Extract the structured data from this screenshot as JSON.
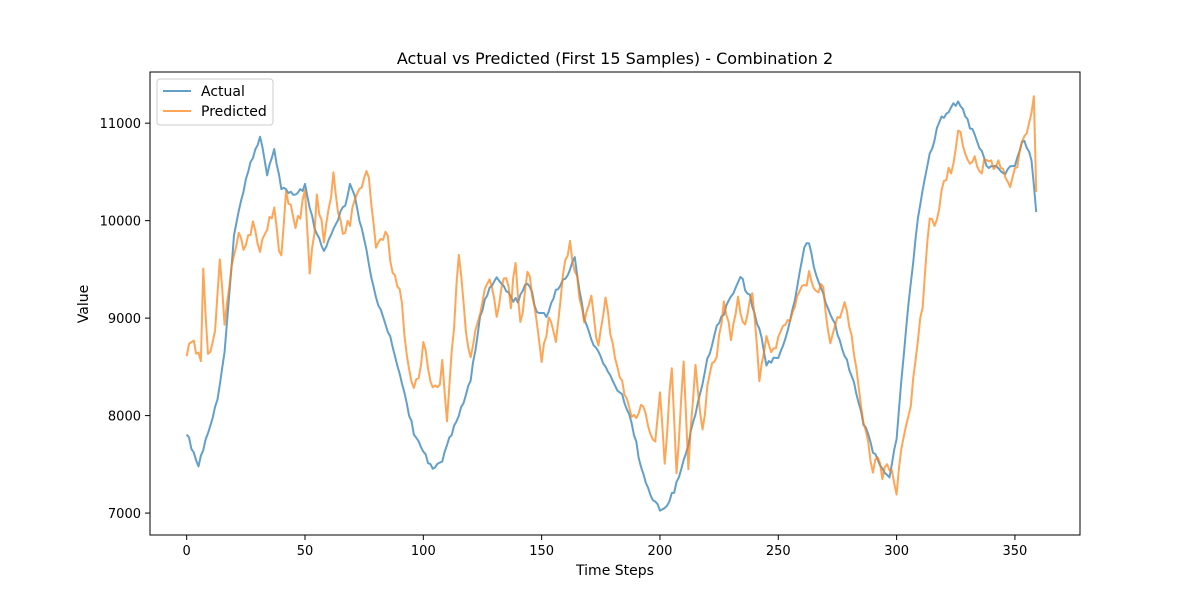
{
  "chart_data": {
    "type": "line",
    "title": "Actual vs Predicted (First 15 Samples) - Combination 2",
    "xlabel": "Time Steps",
    "ylabel": "Value",
    "xlim": [
      -15.5,
      377.5
    ],
    "ylim": [
      6775,
      11525
    ],
    "x_ticks": [
      0,
      50,
      100,
      150,
      200,
      250,
      300,
      350
    ],
    "y_ticks": [
      7000,
      8000,
      9000,
      10000,
      11000
    ],
    "grid": false,
    "legend": {
      "placement": "upper-left"
    },
    "series": [
      {
        "name": "Actual",
        "color": "#1f77b4",
        "anchors": [
          [
            0,
            7850
          ],
          [
            5,
            7480
          ],
          [
            8,
            7720
          ],
          [
            12,
            8050
          ],
          [
            16,
            8650
          ],
          [
            20,
            9850
          ],
          [
            25,
            10400
          ],
          [
            28,
            10650
          ],
          [
            31,
            10900
          ],
          [
            34,
            10500
          ],
          [
            37,
            10700
          ],
          [
            40,
            10300
          ],
          [
            45,
            10300
          ],
          [
            50,
            10350
          ],
          [
            54,
            9900
          ],
          [
            58,
            9700
          ],
          [
            63,
            10000
          ],
          [
            67,
            10150
          ],
          [
            69,
            10350
          ],
          [
            72,
            10150
          ],
          [
            76,
            9700
          ],
          [
            80,
            9200
          ],
          [
            84,
            8900
          ],
          [
            88,
            8650
          ],
          [
            93,
            8150
          ],
          [
            96,
            7800
          ],
          [
            100,
            7600
          ],
          [
            104,
            7480
          ],
          [
            108,
            7550
          ],
          [
            112,
            7800
          ],
          [
            116,
            8050
          ],
          [
            120,
            8400
          ],
          [
            124,
            9000
          ],
          [
            128,
            9300
          ],
          [
            132,
            9400
          ],
          [
            135,
            9300
          ],
          [
            140,
            9150
          ],
          [
            144,
            9350
          ],
          [
            148,
            9100
          ],
          [
            152,
            9050
          ],
          [
            156,
            9250
          ],
          [
            160,
            9400
          ],
          [
            164,
            9650
          ],
          [
            168,
            9000
          ],
          [
            172,
            8700
          ],
          [
            176,
            8550
          ],
          [
            180,
            8400
          ],
          [
            184,
            8200
          ],
          [
            188,
            7900
          ],
          [
            192,
            7500
          ],
          [
            196,
            7200
          ],
          [
            200,
            7000
          ],
          [
            204,
            7100
          ],
          [
            208,
            7400
          ],
          [
            212,
            7700
          ],
          [
            216,
            8100
          ],
          [
            220,
            8550
          ],
          [
            224,
            8950
          ],
          [
            230,
            9200
          ],
          [
            234,
            9400
          ],
          [
            238,
            9250
          ],
          [
            242,
            8900
          ],
          [
            245,
            8500
          ],
          [
            250,
            8600
          ],
          [
            254,
            8900
          ],
          [
            258,
            9300
          ],
          [
            261,
            9700
          ],
          [
            263,
            9750
          ],
          [
            266,
            9450
          ],
          [
            270,
            9200
          ],
          [
            274,
            8900
          ],
          [
            278,
            8600
          ],
          [
            282,
            8350
          ],
          [
            286,
            7950
          ],
          [
            290,
            7600
          ],
          [
            294,
            7450
          ],
          [
            297,
            7400
          ],
          [
            300,
            7800
          ],
          [
            303,
            8600
          ],
          [
            306,
            9350
          ],
          [
            310,
            10200
          ],
          [
            314,
            10700
          ],
          [
            318,
            11000
          ],
          [
            322,
            11100
          ],
          [
            326,
            11250
          ],
          [
            330,
            11050
          ],
          [
            334,
            10800
          ],
          [
            338,
            10550
          ],
          [
            342,
            10600
          ],
          [
            346,
            10500
          ],
          [
            350,
            10550
          ],
          [
            354,
            10850
          ],
          [
            357,
            10650
          ],
          [
            359,
            10100
          ]
        ]
      },
      {
        "name": "Predicted",
        "color": "#ff7f0e",
        "anchors": [
          [
            0,
            8550
          ],
          [
            3,
            8800
          ],
          [
            6,
            8600
          ],
          [
            7,
            9600
          ],
          [
            9,
            8650
          ],
          [
            12,
            8800
          ],
          [
            14,
            9500
          ],
          [
            16,
            8900
          ],
          [
            19,
            9550
          ],
          [
            22,
            9900
          ],
          [
            25,
            9700
          ],
          [
            28,
            9900
          ],
          [
            31,
            9650
          ],
          [
            34,
            10000
          ],
          [
            37,
            10150
          ],
          [
            40,
            9600
          ],
          [
            42,
            10250
          ],
          [
            46,
            9900
          ],
          [
            50,
            10350
          ],
          [
            52,
            9500
          ],
          [
            55,
            10200
          ],
          [
            58,
            9750
          ],
          [
            62,
            10400
          ],
          [
            66,
            9900
          ],
          [
            70,
            10100
          ],
          [
            74,
            10300
          ],
          [
            77,
            10450
          ],
          [
            80,
            9800
          ],
          [
            84,
            9950
          ],
          [
            87,
            9400
          ],
          [
            90,
            9200
          ],
          [
            92,
            8900
          ],
          [
            95,
            8350
          ],
          [
            98,
            8450
          ],
          [
            100,
            8700
          ],
          [
            103,
            8300
          ],
          [
            106,
            8200
          ],
          [
            108,
            8650
          ],
          [
            110,
            7950
          ],
          [
            112,
            8700
          ],
          [
            115,
            9600
          ],
          [
            118,
            8800
          ],
          [
            120,
            8500
          ],
          [
            122,
            8900
          ],
          [
            125,
            9250
          ],
          [
            128,
            9450
          ],
          [
            131,
            8950
          ],
          [
            134,
            9400
          ],
          [
            137,
            9200
          ],
          [
            139,
            9650
          ],
          [
            141,
            9000
          ],
          [
            144,
            9450
          ],
          [
            147,
            9100
          ],
          [
            150,
            8450
          ],
          [
            153,
            9100
          ],
          [
            156,
            8800
          ],
          [
            159,
            9400
          ],
          [
            162,
            9700
          ],
          [
            165,
            9350
          ],
          [
            168,
            9050
          ],
          [
            171,
            9300
          ],
          [
            174,
            8700
          ],
          [
            177,
            9150
          ],
          [
            180,
            8650
          ],
          [
            183,
            8500
          ],
          [
            186,
            8200
          ],
          [
            189,
            7900
          ],
          [
            192,
            8050
          ],
          [
            195,
            7850
          ],
          [
            198,
            7800
          ],
          [
            200,
            8250
          ],
          [
            202,
            7600
          ],
          [
            205,
            8450
          ],
          [
            207,
            7300
          ],
          [
            210,
            8500
          ],
          [
            212,
            7550
          ],
          [
            215,
            8550
          ],
          [
            218,
            7800
          ],
          [
            221,
            8400
          ],
          [
            224,
            8500
          ],
          [
            227,
            9200
          ],
          [
            230,
            8850
          ],
          [
            233,
            9150
          ],
          [
            236,
            8850
          ],
          [
            239,
            9250
          ],
          [
            242,
            8450
          ],
          [
            245,
            8900
          ],
          [
            248,
            8600
          ],
          [
            251,
            8800
          ],
          [
            254,
            8950
          ],
          [
            257,
            9200
          ],
          [
            260,
            9400
          ],
          [
            263,
            9450
          ],
          [
            266,
            9200
          ],
          [
            269,
            9300
          ],
          [
            272,
            8800
          ],
          [
            275,
            9050
          ],
          [
            278,
            9100
          ],
          [
            281,
            8800
          ],
          [
            284,
            8200
          ],
          [
            287,
            7900
          ],
          [
            290,
            7500
          ],
          [
            292,
            7650
          ],
          [
            294,
            7300
          ],
          [
            296,
            7500
          ],
          [
            298,
            7350
          ],
          [
            300,
            7200
          ],
          [
            302,
            7750
          ],
          [
            305,
            8050
          ],
          [
            308,
            8500
          ],
          [
            311,
            9100
          ],
          [
            314,
            10000
          ],
          [
            317,
            10050
          ],
          [
            320,
            10500
          ],
          [
            323,
            10400
          ],
          [
            326,
            10900
          ],
          [
            329,
            10650
          ],
          [
            332,
            10700
          ],
          [
            335,
            10600
          ],
          [
            338,
            10550
          ],
          [
            341,
            10500
          ],
          [
            344,
            10600
          ],
          [
            347,
            10400
          ],
          [
            350,
            10550
          ],
          [
            353,
            10750
          ],
          [
            356,
            10900
          ],
          [
            358,
            11200
          ],
          [
            359,
            10350
          ]
        ]
      }
    ]
  }
}
